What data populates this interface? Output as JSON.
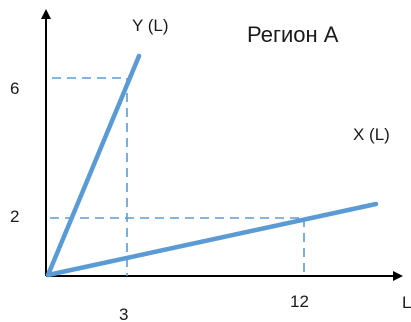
{
  "title": "Регион А",
  "axes": {
    "y_label": "Y (L)",
    "x_label": "L"
  },
  "curves": {
    "y_line_label": "Y (L)",
    "x_line_label": "X (L)"
  },
  "tick_labels": {
    "y_six": "6",
    "y_two": "2",
    "x_three": "3",
    "x_twelve": "12"
  },
  "colors": {
    "line": "#5b9bd5",
    "axis": "#000000"
  }
}
